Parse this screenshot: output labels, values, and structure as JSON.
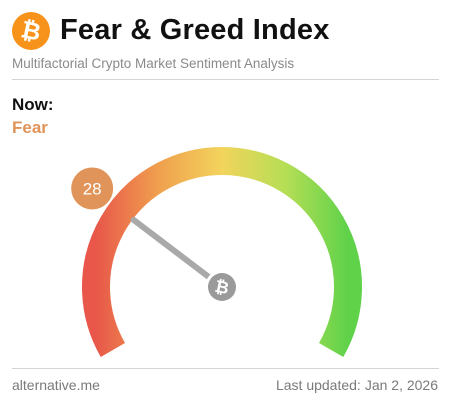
{
  "header": {
    "title": "Fear & Greed Index",
    "subtitle": "Multifactorial Crypto Market Sentiment Analysis",
    "logo_icon": "bitcoin-icon",
    "logo_color": "#f7931a"
  },
  "current": {
    "now_label": "Now:",
    "classification": "Fear",
    "classification_color": "#e0945a",
    "value": "28",
    "value_badge_color": "#e0945a"
  },
  "gauge": {
    "min": 0,
    "max": 100,
    "value": 28,
    "colors": {
      "extreme_fear": "#e8574a",
      "fear": "#f0a04e",
      "neutral": "#f2d45c",
      "greed": "#b6de55",
      "extreme_greed": "#5fd24a"
    },
    "needle_color": "#a9a9a9",
    "hub_icon": "bitcoin-icon",
    "hub_color": "#9a9a9a"
  },
  "footer": {
    "source": "alternative.me",
    "updated_label": "Last updated:",
    "updated_date": "Jan 2, 2026"
  }
}
